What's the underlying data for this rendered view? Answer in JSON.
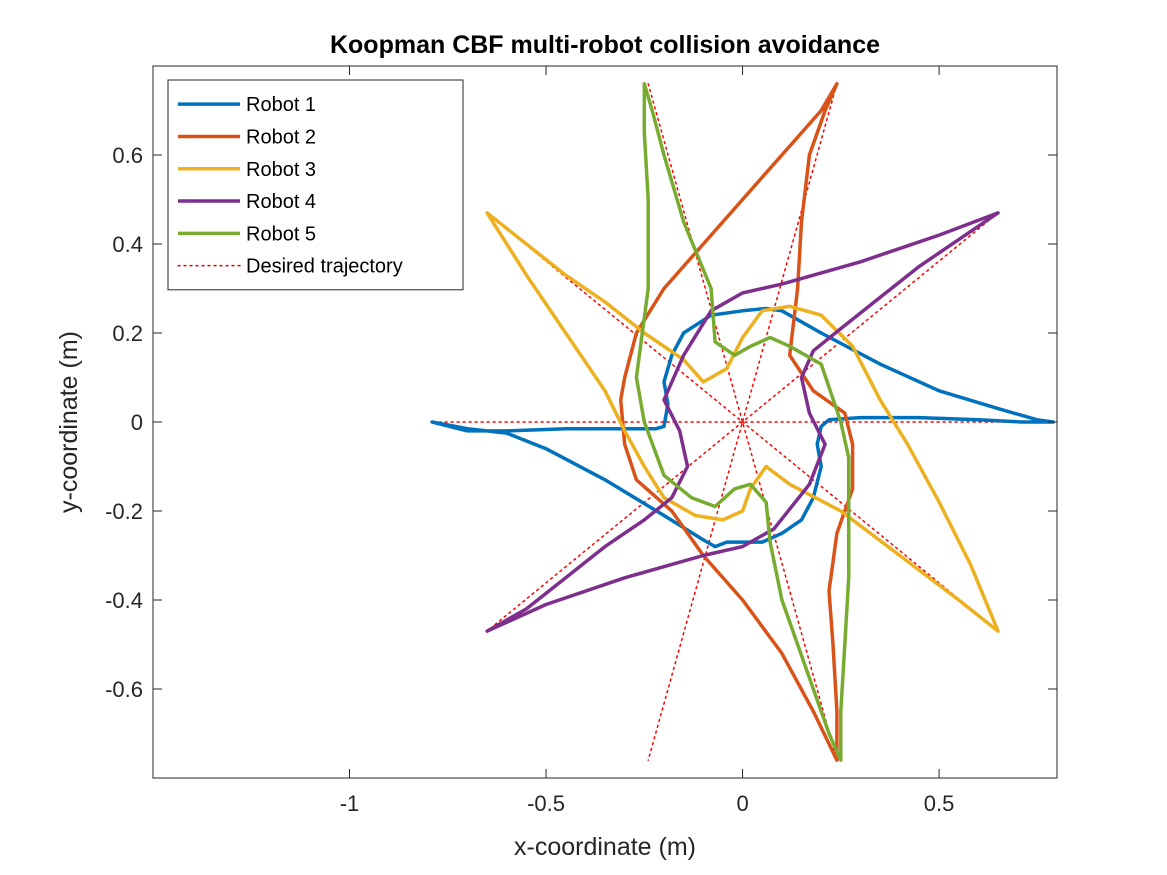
{
  "chart_data": {
    "type": "line",
    "title": "Koopman CBF multi-robot collision avoidance",
    "xlabel": "x-coordinate (m)",
    "ylabel": "y-coordinate (m)",
    "xlim": [
      -1.5,
      0.8
    ],
    "ylim": [
      -0.8,
      0.8
    ],
    "xticks": [
      -1,
      -0.5,
      0,
      0.5
    ],
    "xtick_labels": [
      "-1",
      "-0.5",
      "0",
      "0.5"
    ],
    "yticks": [
      -0.6,
      -0.4,
      -0.2,
      0,
      0.2,
      0.4,
      0.6
    ],
    "ytick_labels": [
      "-0.6",
      "-0.4",
      "-0.2",
      "0",
      "0.2",
      "0.4",
      "0.6"
    ],
    "grid": false,
    "legend_position": "top-left",
    "series": [
      {
        "name": "Robot 1",
        "color": "#0072BD",
        "style": "solid",
        "points": [
          [
            0.79,
            0.0
          ],
          [
            0.71,
            0.0
          ],
          [
            0.6,
            0.005
          ],
          [
            0.45,
            0.01
          ],
          [
            0.3,
            0.01
          ],
          [
            0.22,
            0.005
          ],
          [
            0.2,
            -0.01
          ],
          [
            0.19,
            -0.05
          ],
          [
            0.2,
            -0.1
          ],
          [
            0.18,
            -0.17
          ],
          [
            0.15,
            -0.22
          ],
          [
            0.1,
            -0.25
          ],
          [
            0.05,
            -0.27
          ],
          [
            0.0,
            -0.27
          ],
          [
            -0.04,
            -0.27
          ],
          [
            -0.07,
            -0.28
          ],
          [
            -0.1,
            -0.265
          ],
          [
            -0.2,
            -0.21
          ],
          [
            -0.35,
            -0.13
          ],
          [
            -0.5,
            -0.06
          ],
          [
            -0.6,
            -0.025
          ],
          [
            -0.7,
            -0.015
          ],
          [
            -0.76,
            -0.005
          ],
          [
            -0.79,
            0.0
          ],
          [
            -0.7,
            -0.02
          ],
          [
            -0.6,
            -0.02
          ],
          [
            -0.45,
            -0.015
          ],
          [
            -0.3,
            -0.015
          ],
          [
            -0.22,
            -0.015
          ],
          [
            -0.2,
            -0.01
          ],
          [
            -0.19,
            0.04
          ],
          [
            -0.2,
            0.09
          ],
          [
            -0.18,
            0.15
          ],
          [
            -0.15,
            0.2
          ],
          [
            -0.08,
            0.24
          ],
          [
            0.0,
            0.25
          ],
          [
            0.06,
            0.255
          ],
          [
            0.1,
            0.25
          ],
          [
            0.2,
            0.2
          ],
          [
            0.35,
            0.13
          ],
          [
            0.5,
            0.07
          ],
          [
            0.65,
            0.03
          ],
          [
            0.75,
            0.005
          ],
          [
            0.79,
            0.0
          ]
        ]
      },
      {
        "name": "Robot 2",
        "color": "#D95319",
        "style": "solid",
        "points": [
          [
            0.24,
            0.76
          ],
          [
            0.21,
            0.7
          ],
          [
            0.17,
            0.6
          ],
          [
            0.15,
            0.45
          ],
          [
            0.14,
            0.3
          ],
          [
            0.12,
            0.15
          ],
          [
            0.18,
            0.07
          ],
          [
            0.26,
            0.02
          ],
          [
            0.28,
            -0.05
          ],
          [
            0.28,
            -0.15
          ],
          [
            0.24,
            -0.25
          ],
          [
            0.22,
            -0.38
          ],
          [
            0.23,
            -0.5
          ],
          [
            0.24,
            -0.65
          ],
          [
            0.24,
            -0.76
          ],
          [
            0.18,
            -0.65
          ],
          [
            0.1,
            -0.52
          ],
          [
            0.0,
            -0.4
          ],
          [
            -0.1,
            -0.3
          ],
          [
            -0.18,
            -0.2
          ],
          [
            -0.27,
            -0.13
          ],
          [
            -0.3,
            -0.05
          ],
          [
            -0.31,
            0.05
          ],
          [
            -0.3,
            0.1
          ],
          [
            -0.27,
            0.2
          ],
          [
            -0.2,
            0.3
          ],
          [
            -0.1,
            0.4
          ],
          [
            0.0,
            0.5
          ],
          [
            0.1,
            0.6
          ],
          [
            0.2,
            0.7
          ],
          [
            0.24,
            0.76
          ]
        ]
      },
      {
        "name": "Robot 3",
        "color": "#EDB120",
        "style": "solid",
        "points": [
          [
            -0.65,
            0.47
          ],
          [
            -0.55,
            0.4
          ],
          [
            -0.45,
            0.33
          ],
          [
            -0.35,
            0.27
          ],
          [
            -0.25,
            0.2
          ],
          [
            -0.15,
            0.14
          ],
          [
            -0.1,
            0.09
          ],
          [
            -0.04,
            0.12
          ],
          [
            0.0,
            0.19
          ],
          [
            0.05,
            0.25
          ],
          [
            0.12,
            0.26
          ],
          [
            0.2,
            0.24
          ],
          [
            0.28,
            0.17
          ],
          [
            0.35,
            0.05
          ],
          [
            0.42,
            -0.05
          ],
          [
            0.5,
            -0.18
          ],
          [
            0.58,
            -0.32
          ],
          [
            0.65,
            -0.47
          ],
          [
            0.55,
            -0.4
          ],
          [
            0.4,
            -0.3
          ],
          [
            0.25,
            -0.2
          ],
          [
            0.12,
            -0.14
          ],
          [
            0.06,
            -0.1
          ],
          [
            0.02,
            -0.15
          ],
          [
            0.0,
            -0.2
          ],
          [
            -0.05,
            -0.22
          ],
          [
            -0.12,
            -0.21
          ],
          [
            -0.2,
            -0.17
          ],
          [
            -0.25,
            -0.1
          ],
          [
            -0.3,
            -0.02
          ],
          [
            -0.35,
            0.07
          ],
          [
            -0.45,
            0.2
          ],
          [
            -0.55,
            0.33
          ],
          [
            -0.65,
            0.47
          ]
        ]
      },
      {
        "name": "Robot 4",
        "color": "#7E2F8E",
        "style": "solid",
        "points": [
          [
            0.65,
            0.47
          ],
          [
            0.5,
            0.42
          ],
          [
            0.3,
            0.36
          ],
          [
            0.1,
            0.31
          ],
          [
            0.0,
            0.29
          ],
          [
            -0.08,
            0.25
          ],
          [
            -0.15,
            0.15
          ],
          [
            -0.2,
            0.05
          ],
          [
            -0.16,
            -0.02
          ],
          [
            -0.14,
            -0.1
          ],
          [
            -0.18,
            -0.17
          ],
          [
            -0.25,
            -0.22
          ],
          [
            -0.35,
            -0.28
          ],
          [
            -0.45,
            -0.35
          ],
          [
            -0.55,
            -0.42
          ],
          [
            -0.65,
            -0.47
          ],
          [
            -0.5,
            -0.41
          ],
          [
            -0.3,
            -0.35
          ],
          [
            -0.1,
            -0.3
          ],
          [
            0.0,
            -0.28
          ],
          [
            0.08,
            -0.24
          ],
          [
            0.17,
            -0.14
          ],
          [
            0.21,
            -0.05
          ],
          [
            0.17,
            0.02
          ],
          [
            0.15,
            0.1
          ],
          [
            0.18,
            0.16
          ],
          [
            0.25,
            0.21
          ],
          [
            0.35,
            0.28
          ],
          [
            0.45,
            0.35
          ],
          [
            0.55,
            0.41
          ],
          [
            0.65,
            0.47
          ]
        ]
      },
      {
        "name": "Robot 5",
        "color": "#77AC30",
        "style": "solid",
        "points": [
          [
            -0.25,
            0.76
          ],
          [
            -0.23,
            0.7
          ],
          [
            -0.2,
            0.6
          ],
          [
            -0.15,
            0.45
          ],
          [
            -0.08,
            0.3
          ],
          [
            -0.07,
            0.18
          ],
          [
            -0.02,
            0.15
          ],
          [
            0.02,
            0.17
          ],
          [
            0.07,
            0.19
          ],
          [
            0.12,
            0.17
          ],
          [
            0.2,
            0.13
          ],
          [
            0.25,
            0.0
          ],
          [
            0.27,
            -0.08
          ],
          [
            0.27,
            -0.2
          ],
          [
            0.27,
            -0.35
          ],
          [
            0.26,
            -0.5
          ],
          [
            0.25,
            -0.65
          ],
          [
            0.25,
            -0.76
          ],
          [
            0.22,
            -0.7
          ],
          [
            0.16,
            -0.55
          ],
          [
            0.1,
            -0.4
          ],
          [
            0.07,
            -0.27
          ],
          [
            0.06,
            -0.18
          ],
          [
            0.02,
            -0.14
          ],
          [
            -0.02,
            -0.15
          ],
          [
            -0.07,
            -0.19
          ],
          [
            -0.13,
            -0.17
          ],
          [
            -0.2,
            -0.12
          ],
          [
            -0.25,
            0.0
          ],
          [
            -0.27,
            0.1
          ],
          [
            -0.24,
            0.3
          ],
          [
            -0.24,
            0.5
          ],
          [
            -0.25,
            0.65
          ],
          [
            -0.25,
            0.76
          ]
        ]
      },
      {
        "name": "Desired trajectory",
        "color": "#FF0000",
        "style": "dotted",
        "segments": [
          [
            [
              0.79,
              0.0
            ],
            [
              -0.79,
              0.0
            ]
          ],
          [
            [
              0.24,
              0.76
            ],
            [
              -0.24,
              -0.76
            ]
          ],
          [
            [
              -0.24,
              0.76
            ],
            [
              0.24,
              -0.76
            ]
          ],
          [
            [
              -0.65,
              0.47
            ],
            [
              0.65,
              -0.47
            ]
          ],
          [
            [
              0.65,
              0.47
            ],
            [
              -0.65,
              -0.47
            ]
          ]
        ]
      }
    ]
  }
}
